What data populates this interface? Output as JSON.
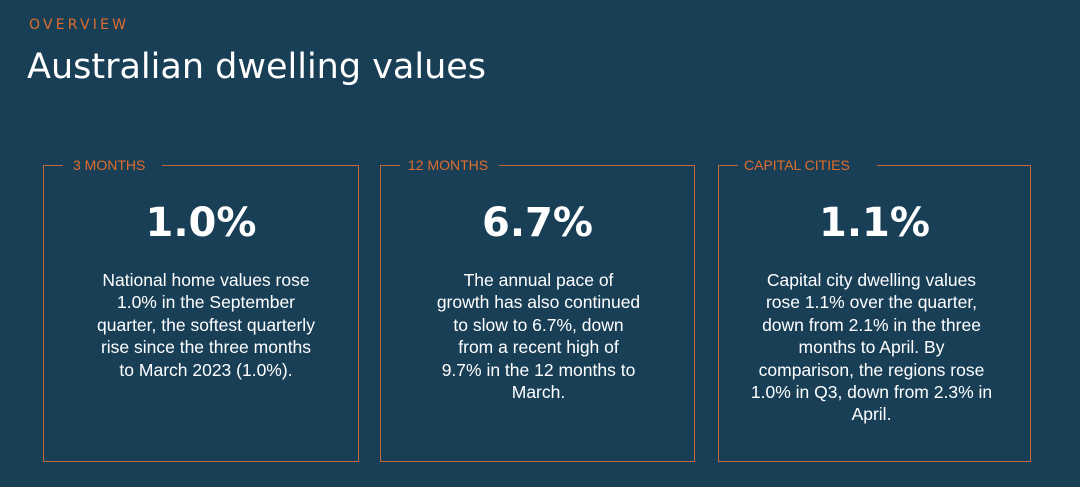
{
  "header": {
    "eyebrow": "OVERVIEW",
    "title": "Australian dwelling values"
  },
  "colors": {
    "background": "#193f57",
    "accent": "#e06d2c",
    "border": "#c0683a",
    "text": "#ffffff"
  },
  "cards": [
    {
      "label": "3 MONTHS",
      "value": "1.0%",
      "text": "National home values rose 1.0% in the September quarter, the softest quarterly rise since the three months to March 2023 (1.0%)."
    },
    {
      "label": "12 MONTHS",
      "value": "6.7%",
      "text": "The annual pace of growth has also continued to slow to 6.7%, down from a recent high of 9.7% in the 12 months to March."
    },
    {
      "label": "CAPITAL CITIES",
      "value": "1.1%",
      "text": "Capital city dwelling values rose 1.1% over the quarter, down from 2.1% in the three months to April. By comparison, the regions rose 1.0% in Q3, down from 2.3% in April."
    }
  ]
}
